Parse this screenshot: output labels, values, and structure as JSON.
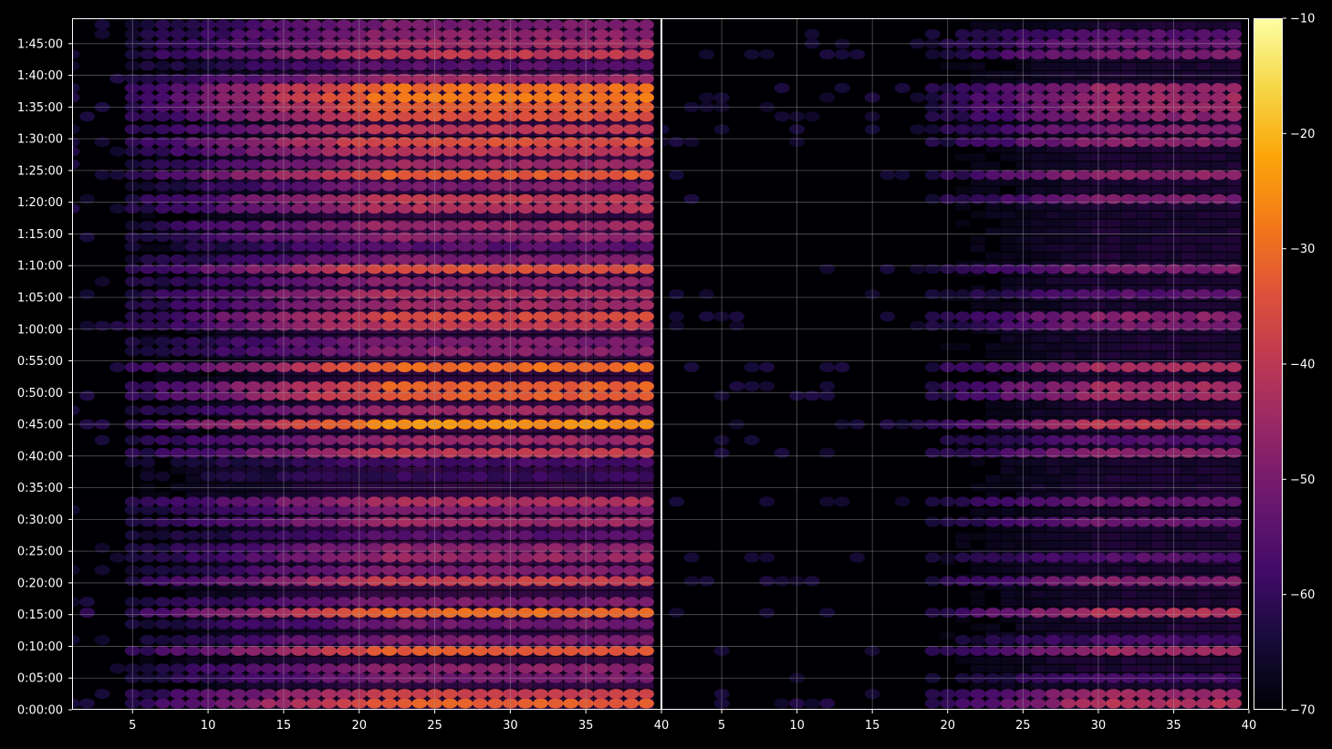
{
  "chart_data": [
    {
      "type": "heatmap",
      "title": "",
      "xlabel": "",
      "ylabel": "",
      "xlim": [
        1,
        40
      ],
      "x_ticks": [
        5,
        10,
        15,
        20,
        25,
        30,
        35,
        40
      ],
      "x_tick_labels": [
        "5",
        "10",
        "15",
        "20",
        "25",
        "30",
        "35",
        "40"
      ],
      "ylim_minutes": [
        0,
        109
      ],
      "y_tick_minutes": [
        0,
        5,
        10,
        15,
        20,
        25,
        30,
        35,
        40,
        45,
        50,
        55,
        60,
        65,
        70,
        75,
        80,
        85,
        90,
        95,
        100,
        105
      ],
      "y_tick_labels": [
        "0:00:00",
        "0:05:00",
        "0:10:00",
        "0:15:00",
        "0:20:00",
        "0:25:00",
        "0:30:00",
        "0:35:00",
        "0:40:00",
        "0:45:00",
        "0:50:00",
        "0:55:00",
        "1:00:00",
        "1:05:00",
        "1:10:00",
        "1:15:00",
        "1:20:00",
        "1:25:00",
        "1:30:00",
        "1:35:00",
        "1:40:00",
        "1:45:00"
      ],
      "grid": true,
      "colormap": "inferno",
      "band_rows": [
        {
          "t": 1,
          "v": -32
        },
        {
          "t": 2.5,
          "v": -38
        },
        {
          "t": 5,
          "v": -50
        },
        {
          "t": 6.5,
          "v": -48
        },
        {
          "t": 9.3,
          "v": -33
        },
        {
          "t": 11,
          "v": -50
        },
        {
          "t": 13.5,
          "v": -52
        },
        {
          "t": 15.3,
          "v": -30
        },
        {
          "t": 17,
          "v": -50
        },
        {
          "t": 20.3,
          "v": -38
        },
        {
          "t": 22,
          "v": -50
        },
        {
          "t": 24,
          "v": -46
        },
        {
          "t": 25.5,
          "v": -48
        },
        {
          "t": 27.5,
          "v": -55
        },
        {
          "t": 29.6,
          "v": -45
        },
        {
          "t": 31.5,
          "v": -50
        },
        {
          "t": 32.8,
          "v": -43
        },
        {
          "t": 36.8,
          "v": -60
        },
        {
          "t": 39,
          "v": -58
        },
        {
          "t": 40.5,
          "v": -40
        },
        {
          "t": 42.5,
          "v": -45
        },
        {
          "t": 45,
          "v": -25
        },
        {
          "t": 47.2,
          "v": -45
        },
        {
          "t": 49.5,
          "v": -33
        },
        {
          "t": 51,
          "v": -32
        },
        {
          "t": 54,
          "v": -30
        },
        {
          "t": 56.5,
          "v": -48
        },
        {
          "t": 58,
          "v": -50
        },
        {
          "t": 60.5,
          "v": -40
        },
        {
          "t": 62,
          "v": -36
        },
        {
          "t": 63.8,
          "v": -45
        },
        {
          "t": 65.5,
          "v": -42
        },
        {
          "t": 67.5,
          "v": -48
        },
        {
          "t": 69.5,
          "v": -35
        },
        {
          "t": 71,
          "v": -50
        },
        {
          "t": 73,
          "v": -55
        },
        {
          "t": 74.5,
          "v": -48
        },
        {
          "t": 76.3,
          "v": -45
        },
        {
          "t": 79,
          "v": -42
        },
        {
          "t": 80.5,
          "v": -40
        },
        {
          "t": 82.5,
          "v": -50
        },
        {
          "t": 84.3,
          "v": -33
        },
        {
          "t": 86,
          "v": -45
        },
        {
          "t": 88,
          "v": -40
        },
        {
          "t": 89.5,
          "v": -35
        },
        {
          "t": 91.5,
          "v": -40
        },
        {
          "t": 93.5,
          "v": -35
        },
        {
          "t": 95,
          "v": -32
        },
        {
          "t": 96.5,
          "v": -28
        },
        {
          "t": 98,
          "v": -30
        },
        {
          "t": 99.5,
          "v": -45
        },
        {
          "t": 101.5,
          "v": -55
        },
        {
          "t": 103.3,
          "v": -40
        },
        {
          "t": 105,
          "v": -45
        },
        {
          "t": 106.5,
          "v": -48
        },
        {
          "t": 108,
          "v": -50
        }
      ]
    },
    {
      "type": "heatmap",
      "title": "",
      "xlabel": "",
      "ylabel": "",
      "xlim": [
        1,
        40
      ],
      "x_ticks": [
        5,
        10,
        15,
        20,
        25,
        30,
        35,
        40
      ],
      "x_tick_labels": [
        "5",
        "10",
        "15",
        "20",
        "25",
        "30",
        "35",
        "40"
      ],
      "ylim_minutes": [
        0,
        109
      ],
      "grid": true,
      "colormap": "inferno",
      "band_rows": [
        {
          "t": 1,
          "v": -42
        },
        {
          "t": 2.5,
          "v": -45
        },
        {
          "t": 5,
          "v": -58
        },
        {
          "t": 9.3,
          "v": -45
        },
        {
          "t": 11,
          "v": -58
        },
        {
          "t": 15.3,
          "v": -42
        },
        {
          "t": 20.3,
          "v": -48
        },
        {
          "t": 24,
          "v": -55
        },
        {
          "t": 29.6,
          "v": -52
        },
        {
          "t": 32.8,
          "v": -52
        },
        {
          "t": 40.5,
          "v": -48
        },
        {
          "t": 42.5,
          "v": -55
        },
        {
          "t": 45,
          "v": -40
        },
        {
          "t": 49.5,
          "v": -45
        },
        {
          "t": 51,
          "v": -44
        },
        {
          "t": 54,
          "v": -44
        },
        {
          "t": 60.5,
          "v": -50
        },
        {
          "t": 62,
          "v": -48
        },
        {
          "t": 65.5,
          "v": -55
        },
        {
          "t": 69.5,
          "v": -50
        },
        {
          "t": 80.5,
          "v": -50
        },
        {
          "t": 84.3,
          "v": -46
        },
        {
          "t": 89.5,
          "v": -48
        },
        {
          "t": 91.5,
          "v": -50
        },
        {
          "t": 93.5,
          "v": -48
        },
        {
          "t": 95,
          "v": -46
        },
        {
          "t": 96.5,
          "v": -45
        },
        {
          "t": 98,
          "v": -46
        },
        {
          "t": 103.3,
          "v": -50
        },
        {
          "t": 105,
          "v": -52
        },
        {
          "t": 106.5,
          "v": -55
        }
      ]
    }
  ],
  "colorbar": {
    "min": -70,
    "max": -10,
    "ticks": [
      -70,
      -60,
      -50,
      -40,
      -30,
      -20,
      -10
    ],
    "tick_labels": [
      "−70",
      "−60",
      "−50",
      "−40",
      "−30",
      "−20",
      "−10"
    ]
  },
  "colors": {
    "background": "#000000",
    "axes_border": "#ffffff",
    "grid": "#9a9a9a"
  }
}
